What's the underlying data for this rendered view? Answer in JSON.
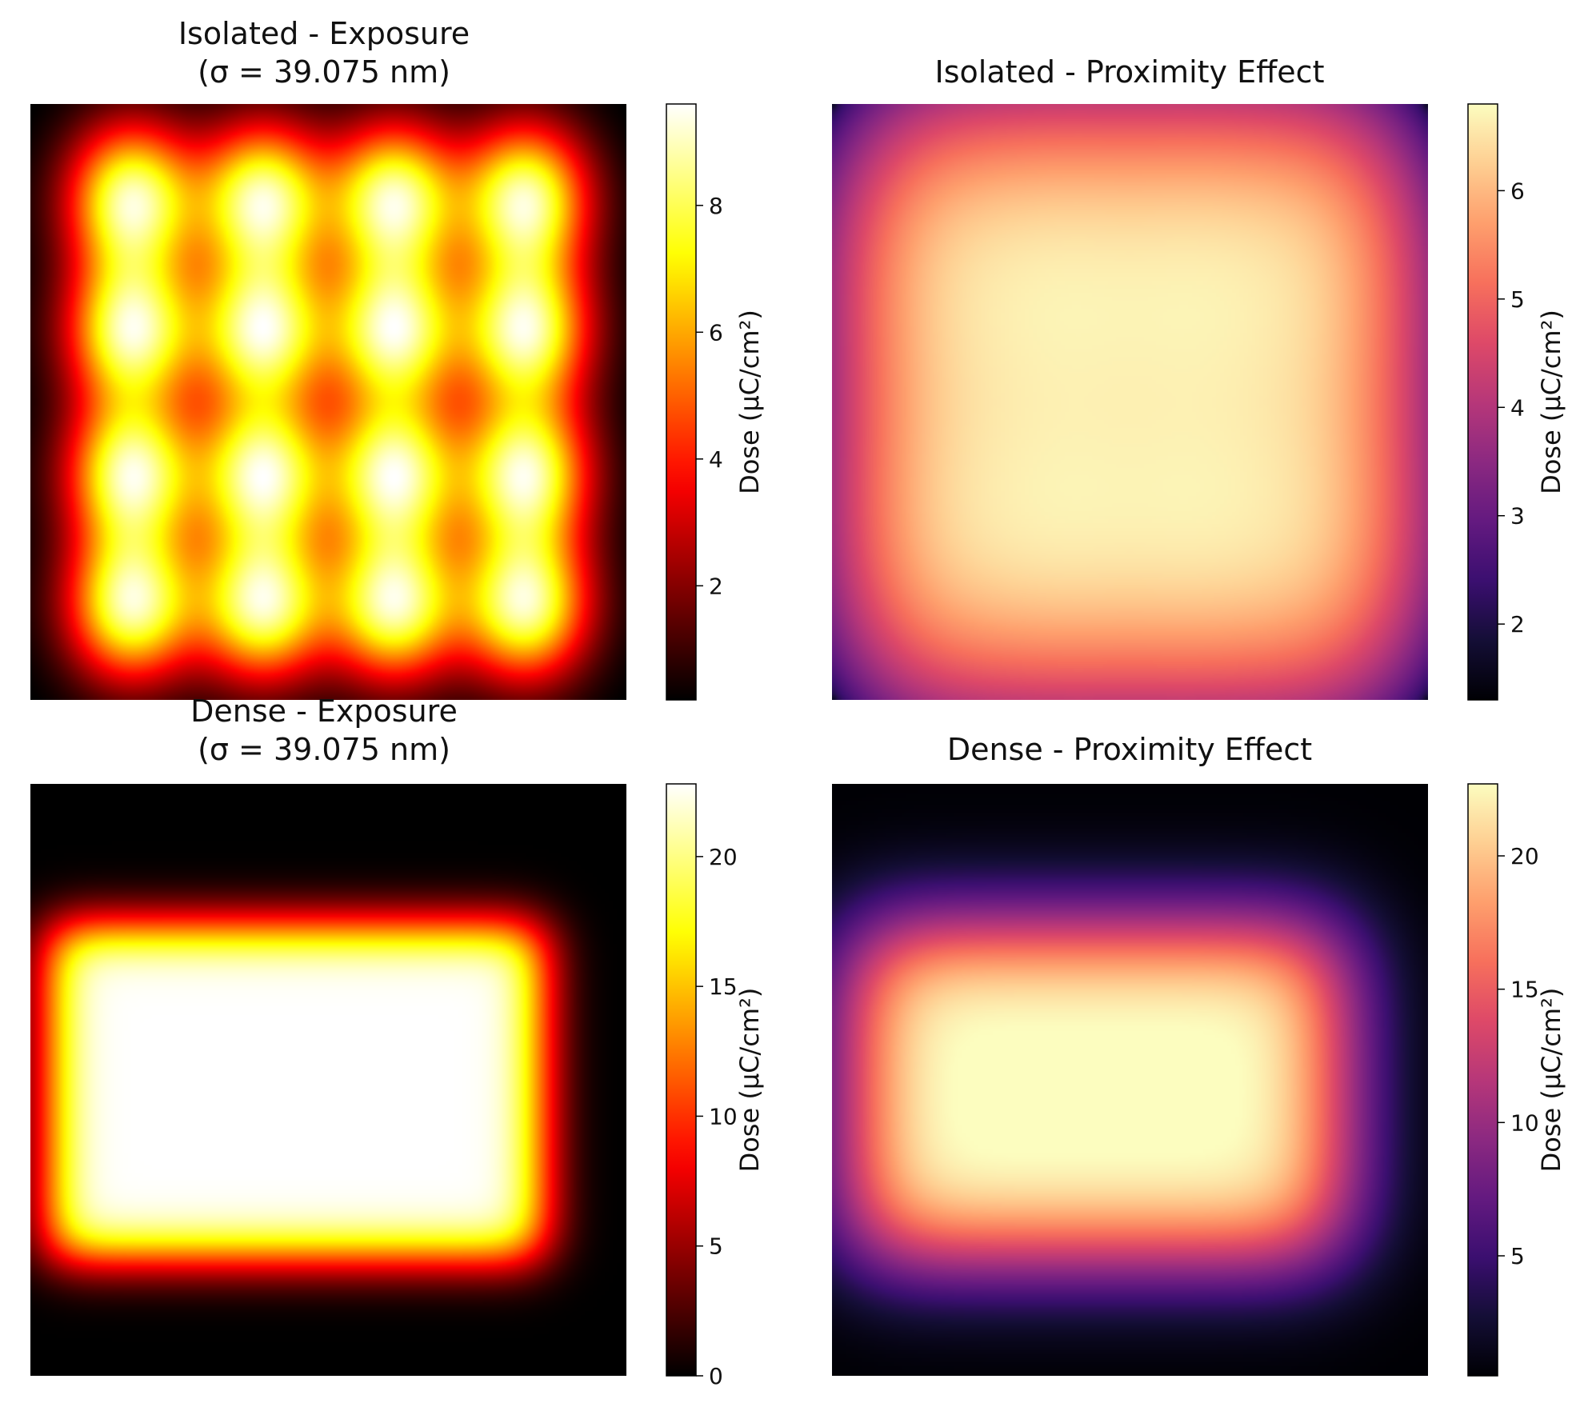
{
  "colors": {
    "background": "#ffffff",
    "axis": "#000000"
  },
  "chart_data": [
    {
      "type": "heatmap",
      "title_lines": [
        "Isolated - Exposure",
        "(σ = 39.075 nm)"
      ],
      "colormap": "hot",
      "colorbar": {
        "label": "Dose (μC/cm²)",
        "min": 0.2,
        "max": 9.6,
        "ticks": [
          2,
          4,
          6,
          8
        ]
      },
      "pattern": "isolated",
      "grid": false,
      "axes_visible": false
    },
    {
      "type": "heatmap",
      "title_lines": [
        "Isolated - Proximity Effect"
      ],
      "colormap": "magma",
      "colorbar": {
        "label": "Dose (μC/cm²)",
        "min": 1.3,
        "max": 6.8,
        "ticks": [
          2,
          3,
          4,
          5,
          6
        ]
      },
      "pattern": "isolated",
      "grid": false,
      "axes_visible": false
    },
    {
      "type": "heatmap",
      "title_lines": [
        "Dense - Exposure",
        "(σ = 39.075 nm)"
      ],
      "colormap": "hot",
      "colorbar": {
        "label": "Dose (μC/cm²)",
        "min": 0,
        "max": 22.8,
        "ticks": [
          0,
          5,
          10,
          15,
          20
        ]
      },
      "pattern": "dense",
      "grid": false,
      "axes_visible": false
    },
    {
      "type": "heatmap",
      "title_lines": [
        "Dense - Proximity Effect"
      ],
      "colormap": "magma",
      "colorbar": {
        "label": "Dose (μC/cm²)",
        "min": 0.5,
        "max": 22.7,
        "ticks": [
          5,
          10,
          15,
          20
        ]
      },
      "pattern": "dense",
      "grid": false,
      "axes_visible": false
    }
  ]
}
